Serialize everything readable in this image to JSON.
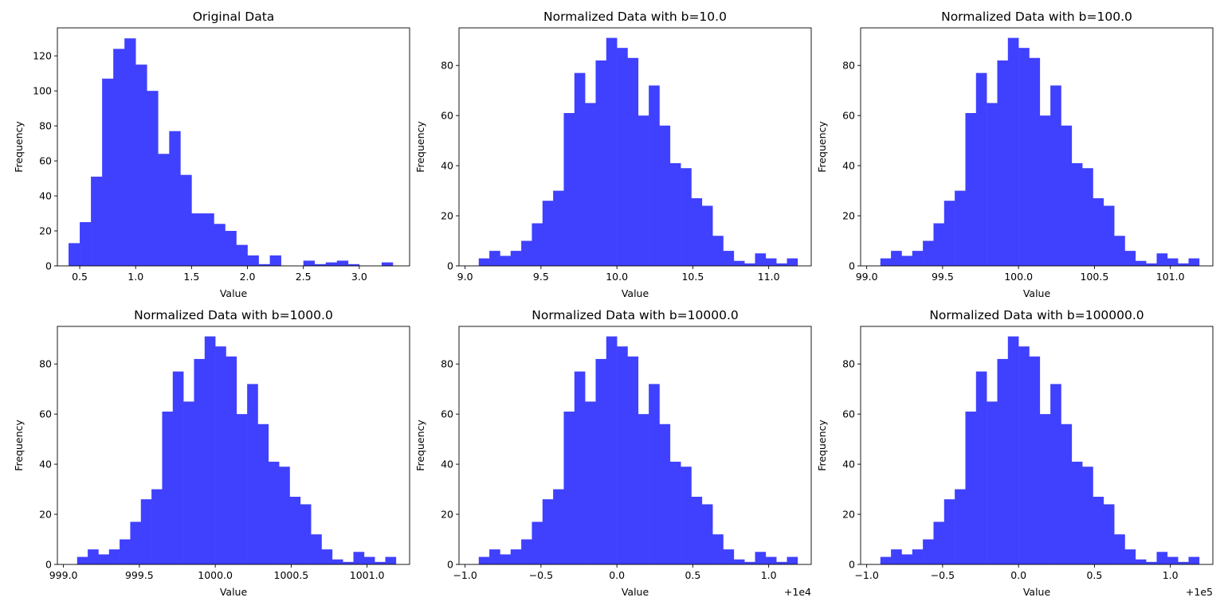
{
  "style": {
    "bar_color": "#4040FF",
    "axis_color": "#000000",
    "background": "#FFFFFF"
  },
  "chart_data": [
    {
      "type": "bar",
      "title": "Original Data",
      "xlabel": "Value",
      "ylabel": "Frequency",
      "xlim": [
        0.3,
        3.45
      ],
      "ylim": [
        0,
        136
      ],
      "bin_edges": [
        0.4,
        0.5,
        0.6,
        0.7,
        0.8,
        0.9,
        1.0,
        1.1,
        1.2,
        1.3,
        1.4,
        1.5,
        1.6,
        1.7,
        1.8,
        1.9,
        2.0,
        2.1,
        2.2,
        2.3,
        2.4,
        2.5,
        2.6,
        2.7,
        2.8,
        2.9,
        3.0,
        3.1,
        3.2,
        3.3
      ],
      "values": [
        13,
        25,
        51,
        107,
        124,
        130,
        115,
        100,
        64,
        77,
        52,
        30,
        30,
        24,
        20,
        12,
        6,
        1,
        6,
        0,
        0,
        3,
        1,
        2,
        3,
        1,
        0,
        0,
        2,
        1
      ],
      "xticks": [
        0.5,
        1.0,
        1.5,
        2.0,
        2.5,
        3.0
      ],
      "xtick_labels": [
        "0.5",
        "1.0",
        "1.5",
        "2.0",
        "2.5",
        "3.0"
      ],
      "yticks": [
        0,
        20,
        40,
        60,
        80,
        100,
        120
      ],
      "ytick_labels": [
        "0",
        "20",
        "40",
        "60",
        "80",
        "100",
        "120"
      ],
      "offset_label": ""
    },
    {
      "type": "bar",
      "title": "Normalized Data with b=10.0",
      "xlabel": "Value",
      "ylabel": "Frequency",
      "xlim": [
        8.96,
        11.28
      ],
      "ylim": [
        0,
        95
      ],
      "bin_edges": [
        9.09,
        9.16,
        9.23,
        9.3,
        9.37,
        9.44,
        9.51,
        9.58,
        9.65,
        9.72,
        9.79,
        9.86,
        9.93,
        10.0,
        10.07,
        10.14,
        10.21,
        10.28,
        10.35,
        10.42,
        10.49,
        10.56,
        10.63,
        10.7,
        10.77,
        10.84,
        10.91,
        10.98,
        11.05,
        11.12,
        11.19
      ],
      "values": [
        3,
        6,
        4,
        6,
        10,
        17,
        26,
        30,
        61,
        77,
        65,
        82,
        91,
        87,
        83,
        60,
        72,
        56,
        41,
        39,
        27,
        24,
        12,
        6,
        2,
        1,
        5,
        3,
        1,
        3
      ],
      "xticks": [
        9.0,
        9.5,
        10.0,
        10.5,
        11.0
      ],
      "xtick_labels": [
        "9.0",
        "9.5",
        "10.0",
        "10.5",
        "11.0"
      ],
      "yticks": [
        0,
        20,
        40,
        60,
        80
      ],
      "ytick_labels": [
        "0",
        "20",
        "40",
        "60",
        "80"
      ],
      "offset_label": ""
    },
    {
      "type": "bar",
      "title": "Normalized Data with b=100.0",
      "xlabel": "Value",
      "ylabel": "Frequency",
      "xlim": [
        98.96,
        101.28
      ],
      "ylim": [
        0,
        95
      ],
      "bin_edges": [
        99.09,
        99.16,
        99.23,
        99.3,
        99.37,
        99.44,
        99.51,
        99.58,
        99.65,
        99.72,
        99.79,
        99.86,
        99.93,
        100.0,
        100.07,
        100.14,
        100.21,
        100.28,
        100.35,
        100.42,
        100.49,
        100.56,
        100.63,
        100.7,
        100.77,
        100.84,
        100.91,
        100.98,
        101.05,
        101.12,
        101.19
      ],
      "values": [
        3,
        6,
        4,
        6,
        10,
        17,
        26,
        30,
        61,
        77,
        65,
        82,
        91,
        87,
        83,
        60,
        72,
        56,
        41,
        39,
        27,
        24,
        12,
        6,
        2,
        1,
        5,
        3,
        1,
        3
      ],
      "xticks": [
        99.0,
        99.5,
        100.0,
        100.5,
        101.0
      ],
      "xtick_labels": [
        "99.0",
        "99.5",
        "100.0",
        "100.5",
        "101.0"
      ],
      "yticks": [
        0,
        20,
        40,
        60,
        80
      ],
      "ytick_labels": [
        "0",
        "20",
        "40",
        "60",
        "80"
      ],
      "offset_label": ""
    },
    {
      "type": "bar",
      "title": "Normalized Data with b=1000.0",
      "xlabel": "Value",
      "ylabel": "Frequency",
      "xlim": [
        998.96,
        1001.28
      ],
      "ylim": [
        0,
        95
      ],
      "bin_edges": [
        999.09,
        999.16,
        999.23,
        999.3,
        999.37,
        999.44,
        999.51,
        999.58,
        999.65,
        999.72,
        999.79,
        999.86,
        999.93,
        1000.0,
        1000.07,
        1000.14,
        1000.21,
        1000.28,
        1000.35,
        1000.42,
        1000.49,
        1000.56,
        1000.63,
        1000.7,
        1000.77,
        1000.84,
        1000.91,
        1000.98,
        1001.05,
        1001.12,
        1001.19
      ],
      "values": [
        3,
        6,
        4,
        6,
        10,
        17,
        26,
        30,
        61,
        77,
        65,
        82,
        91,
        87,
        83,
        60,
        72,
        56,
        41,
        39,
        27,
        24,
        12,
        6,
        2,
        1,
        5,
        3,
        1,
        3
      ],
      "xticks": [
        999.0,
        999.5,
        1000.0,
        1000.5,
        1001.0
      ],
      "xtick_labels": [
        "999.0",
        "999.5",
        "1000.0",
        "1000.5",
        "1001.0"
      ],
      "yticks": [
        0,
        20,
        40,
        60,
        80
      ],
      "ytick_labels": [
        "0",
        "20",
        "40",
        "60",
        "80"
      ],
      "offset_label": ""
    },
    {
      "type": "bar",
      "title": "Normalized Data with b=10000.0",
      "xlabel": "Value",
      "ylabel": "Frequency",
      "xlim": [
        -1.04,
        1.28
      ],
      "ylim": [
        0,
        95
      ],
      "bin_edges": [
        -0.91,
        -0.84,
        -0.77,
        -0.7,
        -0.63,
        -0.56,
        -0.49,
        -0.42,
        -0.35,
        -0.28,
        -0.21,
        -0.14,
        -0.07,
        0.0,
        0.07,
        0.14,
        0.21,
        0.28,
        0.35,
        0.42,
        0.49,
        0.56,
        0.63,
        0.7,
        0.77,
        0.84,
        0.91,
        0.98,
        1.05,
        1.12,
        1.19
      ],
      "values": [
        3,
        6,
        4,
        6,
        10,
        17,
        26,
        30,
        61,
        77,
        65,
        82,
        91,
        87,
        83,
        60,
        72,
        56,
        41,
        39,
        27,
        24,
        12,
        6,
        2,
        1,
        5,
        3,
        1,
        3
      ],
      "xticks": [
        -1.0,
        -0.5,
        0.0,
        0.5,
        1.0
      ],
      "xtick_labels": [
        "−1.0",
        "−0.5",
        "0.0",
        "0.5",
        "1.0"
      ],
      "yticks": [
        0,
        20,
        40,
        60,
        80
      ],
      "ytick_labels": [
        "0",
        "20",
        "40",
        "60",
        "80"
      ],
      "offset_label": "+1e4"
    },
    {
      "type": "bar",
      "title": "Normalized Data with b=100000.0",
      "xlabel": "Value",
      "ylabel": "Frequency",
      "xlim": [
        -1.04,
        1.28
      ],
      "ylim": [
        0,
        95
      ],
      "bin_edges": [
        -0.91,
        -0.84,
        -0.77,
        -0.7,
        -0.63,
        -0.56,
        -0.49,
        -0.42,
        -0.35,
        -0.28,
        -0.21,
        -0.14,
        -0.07,
        0.0,
        0.07,
        0.14,
        0.21,
        0.28,
        0.35,
        0.42,
        0.49,
        0.56,
        0.63,
        0.7,
        0.77,
        0.84,
        0.91,
        0.98,
        1.05,
        1.12,
        1.19
      ],
      "values": [
        3,
        6,
        4,
        6,
        10,
        17,
        26,
        30,
        61,
        77,
        65,
        82,
        91,
        87,
        83,
        60,
        72,
        56,
        41,
        39,
        27,
        24,
        12,
        6,
        2,
        1,
        5,
        3,
        1,
        3
      ],
      "xticks": [
        -1.0,
        -0.5,
        0.0,
        0.5,
        1.0
      ],
      "xtick_labels": [
        "−1.0",
        "−0.5",
        "0.0",
        "0.5",
        "1.0"
      ],
      "yticks": [
        0,
        20,
        40,
        60,
        80
      ],
      "ytick_labels": [
        "0",
        "20",
        "40",
        "60",
        "80"
      ],
      "offset_label": "+1e5"
    }
  ]
}
